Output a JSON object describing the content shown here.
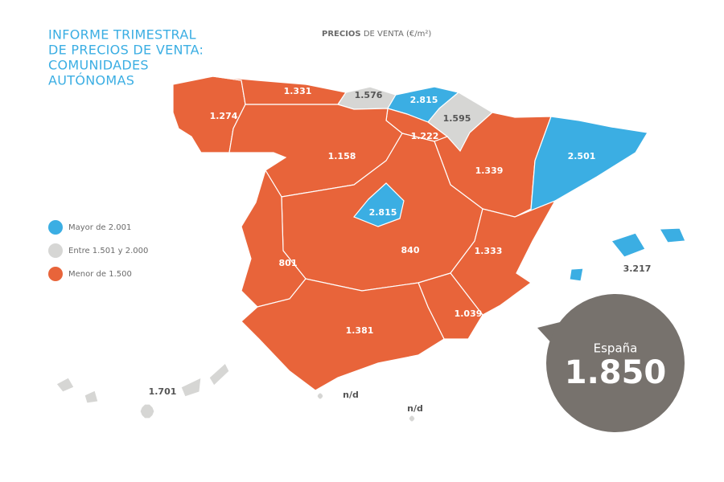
{
  "header": {
    "title_lines": [
      "INFORME TRIMESTRAL",
      "DE PRECIOS DE VENTA:",
      "COMUNIDADES",
      "AUTÓNOMAS"
    ],
    "subtitle_bold": "PRECIOS",
    "subtitle_rest": "DE VENTA (€/m²)"
  },
  "legend": [
    {
      "label": "Mayor de 2.001",
      "color": "#3baee3"
    },
    {
      "label": "Entre 1.501 y 2.000",
      "color": "#d6d6d4"
    },
    {
      "label": "Menor de 1.500",
      "color": "#e8643a"
    }
  ],
  "regions": [
    {
      "label": "1.274",
      "color": "#e8643a"
    },
    {
      "label": "1.331",
      "color": "#e8643a"
    },
    {
      "label": "1.576",
      "color": "#d6d6d4"
    },
    {
      "label": "2.815",
      "color": "#3baee3"
    },
    {
      "label": "1.595",
      "color": "#d6d6d4"
    },
    {
      "label": "1.222",
      "color": "#e8643a"
    },
    {
      "label": "1.158",
      "color": "#e8643a"
    },
    {
      "label": "1.339",
      "color": "#e8643a"
    },
    {
      "label": "2.501",
      "color": "#3baee3"
    },
    {
      "label": "840",
      "color": "#e8643a"
    },
    {
      "label": "2.815",
      "color": "#3baee3"
    },
    {
      "label": "801",
      "color": "#e8643a"
    },
    {
      "label": "1.333",
      "color": "#e8643a"
    },
    {
      "label": "1.039",
      "color": "#e8643a"
    },
    {
      "label": "1.381",
      "color": "#e8643a"
    },
    {
      "label": "3.217",
      "color": "#3baee3"
    },
    {
      "label": "1.701",
      "color": "#d6d6d4"
    },
    {
      "label": "n/d",
      "color": "#d6d6d4"
    },
    {
      "label": "n/d",
      "color": "#d6d6d4"
    }
  ],
  "national": {
    "label": "España",
    "value": "1.850"
  }
}
